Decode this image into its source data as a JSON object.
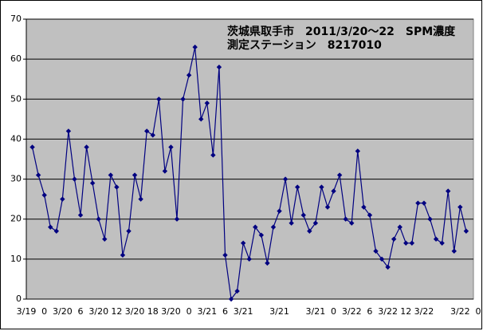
{
  "chart_data": {
    "type": "line",
    "title": "茨城県取手市　2011/3/20～22　SPM濃度",
    "subtitle": "測定ステーション　8217010",
    "categories": [
      "3/19",
      null,
      null,
      "0",
      null,
      null,
      "3/20",
      null,
      null,
      "6",
      null,
      null,
      "3/20",
      null,
      null,
      "12",
      null,
      null,
      "3/20",
      null,
      null,
      "18",
      null,
      null,
      "3/20",
      null,
      null,
      "0",
      null,
      null,
      "3/21",
      null,
      null,
      "6",
      null,
      null,
      "3/21",
      null,
      null,
      null,
      null,
      null,
      "3/21",
      null,
      null,
      null,
      null,
      null,
      "3/21",
      null,
      null,
      "0",
      null,
      null,
      "3/22",
      null,
      null,
      "6",
      null,
      null,
      "3/22",
      null,
      null,
      "12",
      null,
      null,
      "3/22",
      null,
      null,
      null,
      null,
      null,
      "3/22",
      null,
      null,
      "0"
    ],
    "values": [
      null,
      38,
      31,
      26,
      18,
      17,
      25,
      42,
      30,
      21,
      38,
      29,
      20,
      15,
      31,
      28,
      11,
      17,
      31,
      25,
      42,
      41,
      50,
      32,
      38,
      20,
      50,
      56,
      63,
      45,
      49,
      36,
      58,
      11,
      0,
      2,
      14,
      10,
      18,
      16,
      9,
      18,
      22,
      30,
      19,
      28,
      21,
      17,
      19,
      28,
      23,
      27,
      31,
      20,
      19,
      37,
      23,
      21,
      12,
      10,
      8,
      15,
      18,
      14,
      14,
      24,
      24,
      20,
      15,
      14,
      27,
      12,
      23,
      17,
      null,
      null
    ],
    "color": "#000080",
    "background": "#c0c0c0",
    "ylim": [
      0,
      70
    ],
    "yticks": [
      0,
      10,
      20,
      30,
      40,
      50,
      60,
      70
    ],
    "grid": true
  }
}
